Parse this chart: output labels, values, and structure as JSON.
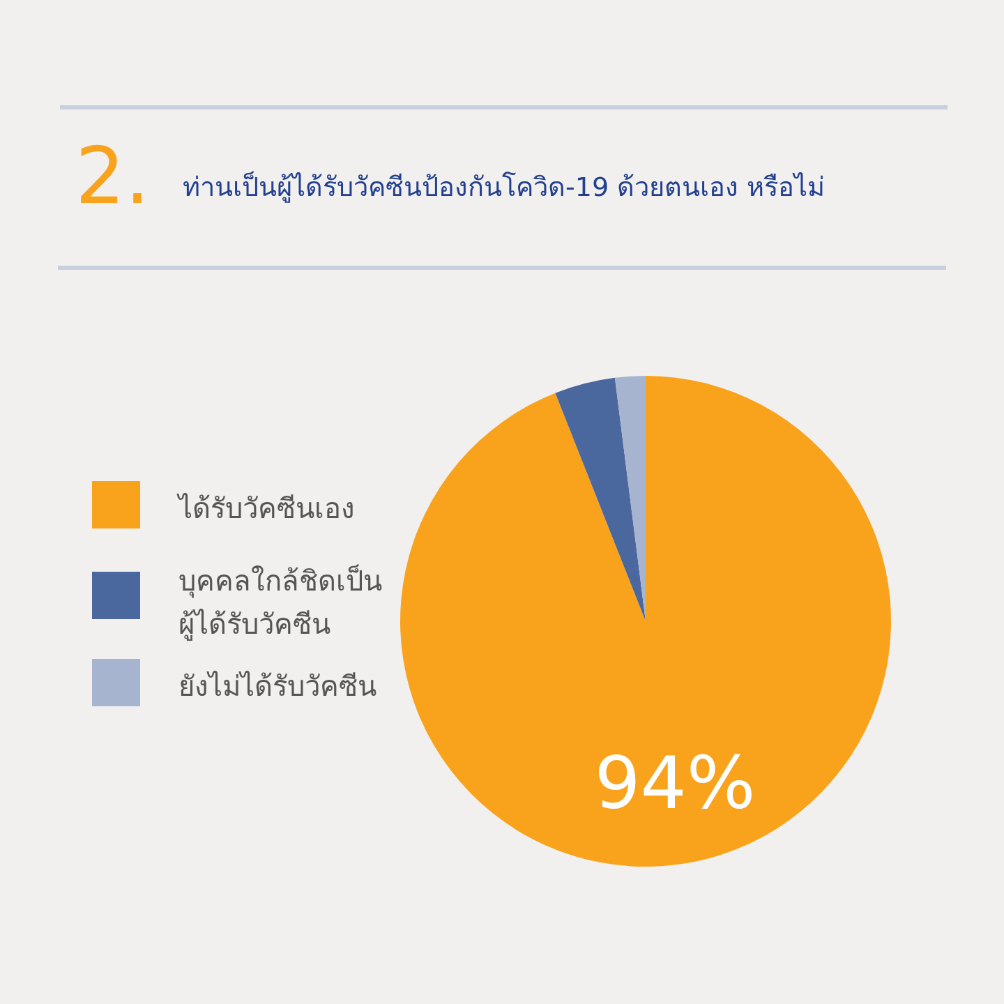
{
  "chart_data": {
    "type": "pie",
    "title": "ท่านเป็นผู้ได้รับวัคซีนป้องกันโควิด-19 ด้วยตนเอง หรือไม่",
    "annotations": [
      "2."
    ],
    "categories": [
      "ได้รับวัคซีนเอง",
      "บุคคลใกล้ชิดเป็นผู้ได้รับวัคซีน",
      "ยังไม่ได้รับวัคซีน"
    ],
    "values": [
      94,
      4,
      2
    ],
    "colors": [
      "#f9a31c",
      "#4b689e",
      "#a6b4cf"
    ],
    "value_labels": [
      "94%",
      null,
      null
    ],
    "legend": "left"
  }
}
